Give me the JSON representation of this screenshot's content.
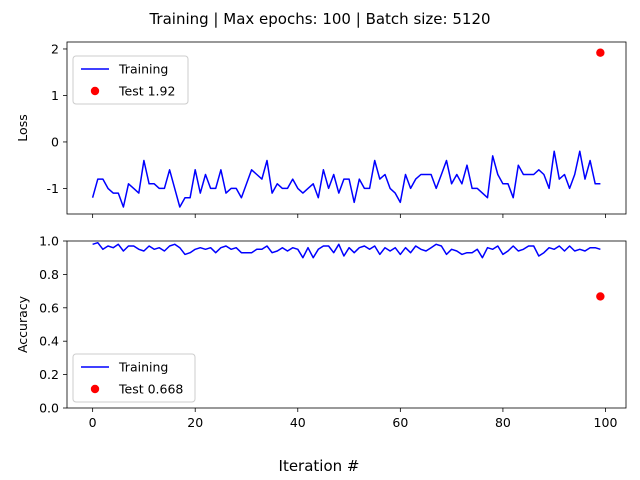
{
  "figure": {
    "title": "Training | Max epochs: 100 | Batch size: 5120",
    "xlabel": "Iteration #"
  },
  "colors": {
    "training": "#0000ff",
    "test": "#ff0000",
    "axis": "#000000",
    "legend_border": "#cccccc"
  },
  "chart_data": [
    {
      "type": "line",
      "ylabel": "Loss",
      "xlim": [
        -5,
        104
      ],
      "ylim": [
        -1.55,
        2.15
      ],
      "yticks": [
        -1,
        0,
        1,
        2
      ],
      "xticks": [
        0,
        20,
        40,
        60,
        80,
        100
      ],
      "show_x_tick_labels": false,
      "grid": false,
      "legend": "top-left",
      "series": [
        {
          "name": "Training",
          "kind": "line",
          "color": "#0000ff",
          "x": [
            0,
            1,
            2,
            3,
            4,
            5,
            6,
            7,
            8,
            9,
            10,
            11,
            12,
            13,
            14,
            15,
            16,
            17,
            18,
            19,
            20,
            21,
            22,
            23,
            24,
            25,
            26,
            27,
            28,
            29,
            30,
            31,
            32,
            33,
            34,
            35,
            36,
            37,
            38,
            39,
            40,
            41,
            42,
            43,
            44,
            45,
            46,
            47,
            48,
            49,
            50,
            51,
            52,
            53,
            54,
            55,
            56,
            57,
            58,
            59,
            60,
            61,
            62,
            63,
            64,
            65,
            66,
            67,
            68,
            69,
            70,
            71,
            72,
            73,
            74,
            75,
            76,
            77,
            78,
            79,
            80,
            81,
            82,
            83,
            84,
            85,
            86,
            87,
            88,
            89,
            90,
            91,
            92,
            93,
            94,
            95,
            96,
            97,
            98,
            99
          ],
          "y": [
            -1.2,
            -0.8,
            -0.8,
            -1.0,
            -1.1,
            -1.1,
            -1.4,
            -0.9,
            -1.0,
            -1.1,
            -0.4,
            -0.9,
            -0.9,
            -1.0,
            -1.0,
            -0.6,
            -1.0,
            -1.4,
            -1.2,
            -1.2,
            -0.6,
            -1.1,
            -0.7,
            -1.0,
            -1.0,
            -0.6,
            -1.1,
            -1.0,
            -1.0,
            -1.2,
            -0.9,
            -0.6,
            -0.7,
            -0.8,
            -0.4,
            -1.1,
            -0.9,
            -1.0,
            -1.0,
            -0.8,
            -1.0,
            -1.1,
            -1.0,
            -0.9,
            -1.2,
            -0.6,
            -1.0,
            -0.7,
            -1.1,
            -0.8,
            -0.8,
            -1.3,
            -0.8,
            -1.0,
            -1.0,
            -0.4,
            -0.8,
            -0.7,
            -1.0,
            -1.1,
            -1.3,
            -0.7,
            -1.0,
            -0.8,
            -0.7,
            -0.7,
            -0.7,
            -1.0,
            -0.7,
            -0.4,
            -0.9,
            -0.7,
            -0.9,
            -0.5,
            -1.0,
            -1.0,
            -1.1,
            -1.2,
            -0.3,
            -0.7,
            -0.9,
            -0.9,
            -1.2,
            -0.5,
            -0.7,
            -0.7,
            -0.7,
            -0.6,
            -0.7,
            -1.0,
            -0.2,
            -0.8,
            -0.7,
            -1.0,
            -0.7,
            -0.2,
            -0.8,
            -0.4,
            -0.9,
            -0.9
          ]
        },
        {
          "name": "Test 1.92",
          "kind": "scatter",
          "color": "#ff0000",
          "x": [
            99
          ],
          "y": [
            1.92
          ]
        }
      ]
    },
    {
      "type": "line",
      "ylabel": "Accuracy",
      "xlim": [
        -5,
        104
      ],
      "ylim": [
        0.0,
        1.0
      ],
      "yticks": [
        0.0,
        0.2,
        0.4,
        0.6,
        0.8,
        1.0
      ],
      "ytick_labels": [
        "0.0",
        "0.2",
        "0.4",
        "0.6",
        "0.8",
        "1.0"
      ],
      "xticks": [
        0,
        20,
        40,
        60,
        80,
        100
      ],
      "show_x_tick_labels": true,
      "grid": false,
      "legend": "bottom-left",
      "series": [
        {
          "name": "Training",
          "kind": "line",
          "color": "#0000ff",
          "x": [
            0,
            1,
            2,
            3,
            4,
            5,
            6,
            7,
            8,
            9,
            10,
            11,
            12,
            13,
            14,
            15,
            16,
            17,
            18,
            19,
            20,
            21,
            22,
            23,
            24,
            25,
            26,
            27,
            28,
            29,
            30,
            31,
            32,
            33,
            34,
            35,
            36,
            37,
            38,
            39,
            40,
            41,
            42,
            43,
            44,
            45,
            46,
            47,
            48,
            49,
            50,
            51,
            52,
            53,
            54,
            55,
            56,
            57,
            58,
            59,
            60,
            61,
            62,
            63,
            64,
            65,
            66,
            67,
            68,
            69,
            70,
            71,
            72,
            73,
            74,
            75,
            76,
            77,
            78,
            79,
            80,
            81,
            82,
            83,
            84,
            85,
            86,
            87,
            88,
            89,
            90,
            91,
            92,
            93,
            94,
            95,
            96,
            97,
            98,
            99
          ],
          "y": [
            0.98,
            0.99,
            0.95,
            0.97,
            0.96,
            0.98,
            0.94,
            0.97,
            0.97,
            0.95,
            0.94,
            0.97,
            0.95,
            0.96,
            0.94,
            0.97,
            0.98,
            0.96,
            0.92,
            0.93,
            0.95,
            0.96,
            0.95,
            0.96,
            0.93,
            0.96,
            0.97,
            0.95,
            0.96,
            0.93,
            0.93,
            0.93,
            0.95,
            0.95,
            0.97,
            0.93,
            0.94,
            0.96,
            0.94,
            0.96,
            0.95,
            0.9,
            0.96,
            0.9,
            0.95,
            0.97,
            0.97,
            0.93,
            0.98,
            0.91,
            0.96,
            0.93,
            0.96,
            0.97,
            0.95,
            0.97,
            0.92,
            0.96,
            0.94,
            0.96,
            0.92,
            0.96,
            0.93,
            0.97,
            0.95,
            0.94,
            0.96,
            0.98,
            0.97,
            0.92,
            0.95,
            0.94,
            0.92,
            0.93,
            0.93,
            0.95,
            0.9,
            0.96,
            0.95,
            0.97,
            0.92,
            0.94,
            0.97,
            0.94,
            0.95,
            0.97,
            0.97,
            0.91,
            0.93,
            0.96,
            0.95,
            0.97,
            0.94,
            0.97,
            0.94,
            0.95,
            0.94,
            0.96,
            0.96,
            0.95
          ]
        },
        {
          "name": "Test 0.668",
          "kind": "scatter",
          "color": "#ff0000",
          "x": [
            99
          ],
          "y": [
            0.668
          ]
        }
      ]
    }
  ]
}
